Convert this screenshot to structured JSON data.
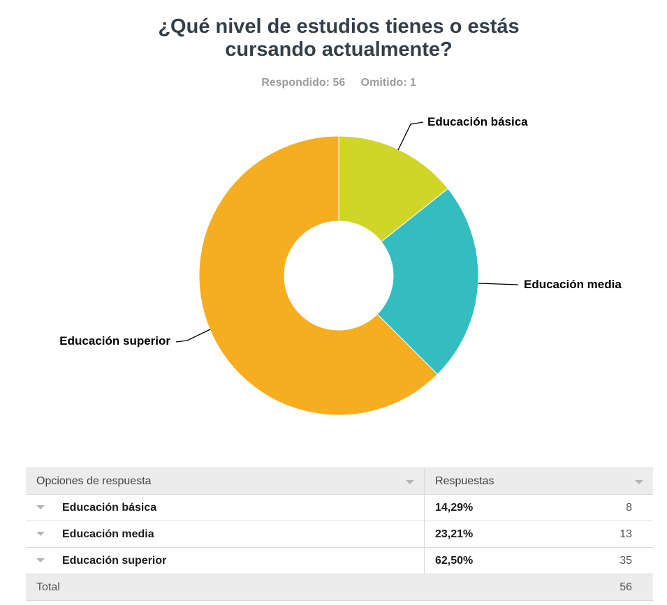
{
  "title_lines": [
    "¿Qué nivel de estudios tienes o estás",
    "cursando actualmente?"
  ],
  "stats": {
    "answered": "Respondido: 56",
    "skipped": "Omitido: 1"
  },
  "chart_data": {
    "type": "pie",
    "donut": true,
    "categories": [
      "Educación básica",
      "Educación media",
      "Educación superior"
    ],
    "values": [
      14.29,
      23.21,
      62.5
    ],
    "counts": [
      8,
      13,
      35
    ],
    "colors": [
      "#cfd629",
      "#33bdbe",
      "#f6ae20"
    ]
  },
  "table": {
    "headers": [
      "Opciones de respuesta",
      "Respuestas"
    ],
    "rows": [
      {
        "label": "Educación básica",
        "percent": "14,29%",
        "count": "8"
      },
      {
        "label": "Educación media",
        "percent": "23,21%",
        "count": "13"
      },
      {
        "label": "Educación superior",
        "percent": "62,50%",
        "count": "35"
      }
    ],
    "total_label": "Total",
    "total": "56"
  }
}
